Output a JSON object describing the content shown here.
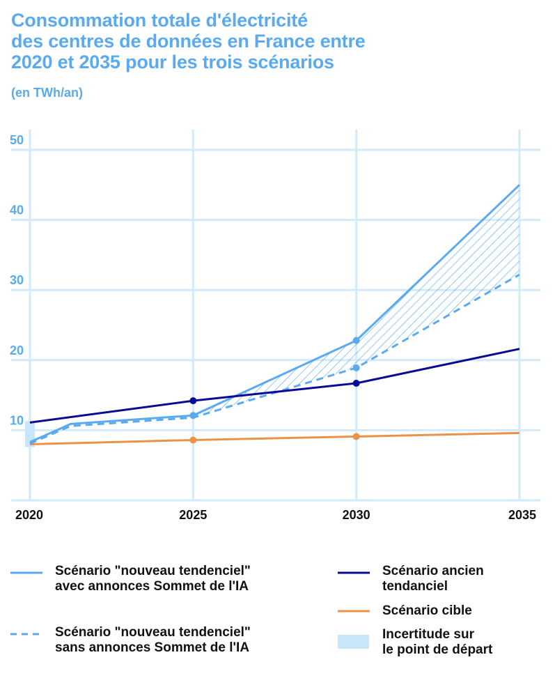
{
  "header": {
    "title_lines": [
      "Consommation totale d'électricité",
      "des centres de données en France entre",
      "2020 et 2035 pour les trois scénarios"
    ],
    "subtitle": "(en TWh/an)"
  },
  "colors": {
    "nouveau_tendenciel": "#5aaaf0",
    "ancien_tendanciel": "#0a0a96",
    "cible": "#ec9248",
    "uncertainty": "#c8e6fa",
    "grid": "#d2eafa",
    "axis_label": "#5aaaf0"
  },
  "chart_data": {
    "type": "line",
    "title": "Consommation totale d'électricité des centres de données en France entre 2020 et 2035 pour les trois scénarios",
    "subtitle": "(en TWh/an)",
    "xlabel": "",
    "ylabel": "TWh/an",
    "xlim": [
      2020,
      2035
    ],
    "ylim": [
      0,
      50
    ],
    "x_ticks": [
      "2020",
      "2025",
      "2030",
      "2035"
    ],
    "y_ticks": [
      "10",
      "20",
      "30",
      "40",
      "50"
    ],
    "grid": true,
    "series": [
      {
        "name": "Scénario \"nouveau tendenciel\" avec annonces Sommet de l'IA",
        "style": "solid",
        "color": "#5aaaf0",
        "x": [
          2020,
          2021.25,
          2025,
          2030,
          2035
        ],
        "values": [
          8.3,
          10.9,
          12.1,
          22.8,
          45.0
        ],
        "markers_at": [
          2025,
          2030
        ]
      },
      {
        "name": "Scénario \"nouveau tendenciel\" sans annonces Sommet de l'IA",
        "style": "dashed",
        "color": "#5aaaf0",
        "x": [
          2020,
          2021.25,
          2025,
          2030,
          2035
        ],
        "values": [
          8.1,
          10.6,
          11.8,
          18.9,
          32.2
        ],
        "markers_at": [
          2030
        ]
      },
      {
        "name": "Scénario ancien tendanciel",
        "style": "solid",
        "color": "#0a0a96",
        "x": [
          2020,
          2025,
          2030,
          2035
        ],
        "values": [
          11.1,
          14.2,
          16.7,
          21.6
        ],
        "markers_at": [
          2025,
          2030
        ]
      },
      {
        "name": "Scénario cible",
        "style": "solid",
        "color": "#ec9248",
        "x": [
          2020,
          2025,
          2030,
          2035
        ],
        "values": [
          8.0,
          8.6,
          9.1,
          9.6
        ],
        "markers_at": [
          2025,
          2030
        ]
      }
    ],
    "hatched_band": {
      "between": [
        "Scénario \"nouveau tendenciel\" avec annonces Sommet de l'IA",
        "Scénario \"nouveau tendenciel\" sans annonces Sommet de l'IA"
      ],
      "from_x": 2025,
      "to_x": 2035
    },
    "uncertainty_range": {
      "name": "Incertitude sur le point de départ",
      "x": 2020,
      "low": 7.6,
      "high": 11.3
    },
    "legend_position": "bottom"
  },
  "legend": {
    "items": [
      {
        "key": "nouveau_avec",
        "lines": [
          "Scénario \"nouveau tendenciel\"",
          "avec annonces Sommet de l'IA"
        ]
      },
      {
        "key": "nouveau_sans",
        "lines": [
          "Scénario \"nouveau tendenciel\"",
          "sans annonces Sommet de l'IA"
        ]
      },
      {
        "key": "ancien",
        "lines": [
          "Scénario ancien",
          "tendanciel"
        ]
      },
      {
        "key": "cible",
        "lines": [
          "Scénario cible"
        ]
      },
      {
        "key": "incertitude",
        "lines": [
          "Incertitude sur",
          "le point de départ"
        ]
      }
    ]
  }
}
